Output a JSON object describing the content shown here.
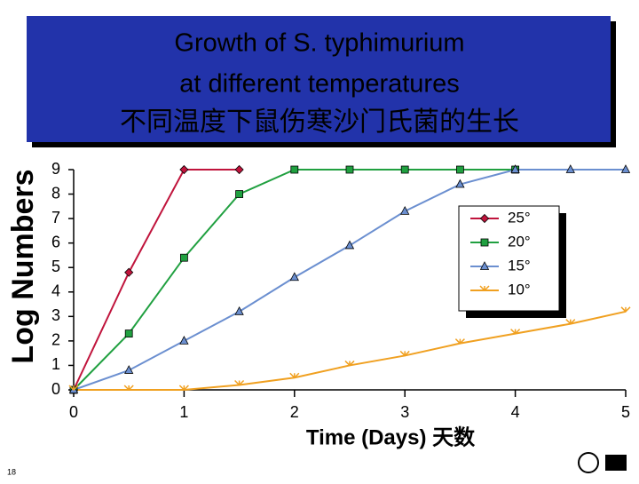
{
  "chart_data": {
    "type": "line",
    "title_lines": [
      "Growth of S. typhimurium",
      "at different temperatures",
      "不同温度下鼠伤寒沙门氏菌的生长"
    ],
    "x_label": "Time (Days) 天数",
    "y_label": "Log Numbers",
    "page_number": "18",
    "x": [
      0,
      0.5,
      1,
      1.5,
      2,
      2.5,
      3,
      3.5,
      4,
      4.5,
      5
    ],
    "xlim": [
      0,
      5
    ],
    "xticks": [
      0,
      1,
      2,
      3,
      4,
      5
    ],
    "ylim": [
      0,
      9
    ],
    "yticks": [
      0,
      1,
      2,
      3,
      4,
      5,
      6,
      7,
      8,
      9
    ],
    "series": [
      {
        "name": "25°",
        "color": "#c0143c",
        "marker": "diamond",
        "values": [
          0,
          4.8,
          9,
          9,
          null,
          null,
          null,
          null,
          null,
          null,
          null
        ]
      },
      {
        "name": "20°",
        "color": "#20a040",
        "marker": "square",
        "values": [
          0,
          2.3,
          5.4,
          8,
          9,
          9,
          9,
          9,
          9,
          null,
          null
        ]
      },
      {
        "name": "15°",
        "color": "#6b8fd0",
        "marker": "triangle",
        "values": [
          0,
          0.8,
          2,
          3.2,
          4.6,
          5.9,
          7.3,
          8.4,
          9,
          9,
          9
        ]
      },
      {
        "name": "10°",
        "color": "#f0a020",
        "marker": "arrow",
        "values": [
          0,
          0,
          0,
          0.2,
          0.5,
          1.0,
          1.4,
          1.9,
          2.3,
          2.7,
          3.2
        ]
      }
    ]
  }
}
